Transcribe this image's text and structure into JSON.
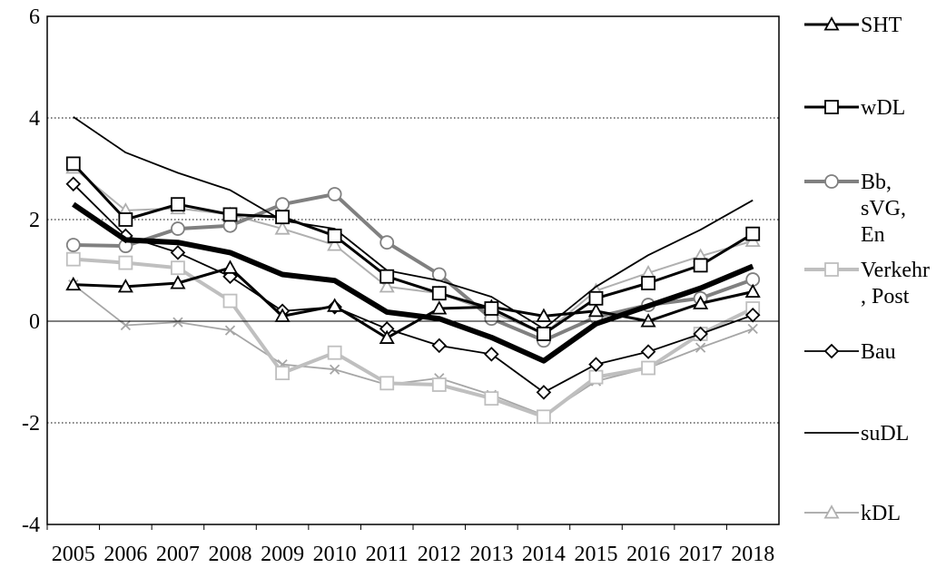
{
  "chart_data": {
    "type": "line",
    "title": "",
    "xlabel": "",
    "ylabel": "",
    "ylim": [
      -4,
      6
    ],
    "y_ticks": [
      "-4",
      "-2",
      "0",
      "2",
      "4",
      "6"
    ],
    "categories": [
      "2005",
      "2006",
      "2007",
      "2008",
      "2009",
      "2010",
      "2011",
      "2012",
      "2013",
      "2014",
      "2015",
      "2016",
      "2017",
      "2018"
    ],
    "grid": "horizontal dotted at -2, 2, 4",
    "legend_position": "right",
    "series": [
      {
        "name": "SHT",
        "color": "#000000",
        "marker": "triangle",
        "values": [
          0.72,
          0.68,
          0.75,
          1.05,
          0.1,
          0.3,
          -0.33,
          0.25,
          0.28,
          0.1,
          0.2,
          0.0,
          0.35,
          0.58
        ]
      },
      {
        "name": "wDL",
        "color": "#000000",
        "marker": "square",
        "values": [
          3.1,
          2.0,
          2.3,
          2.1,
          2.05,
          1.68,
          0.88,
          0.55,
          0.25,
          -0.25,
          0.45,
          0.75,
          1.1,
          1.72
        ]
      },
      {
        "name": "Bb, sVG, En",
        "color": "#808080",
        "marker": "circle",
        "values": [
          1.5,
          1.48,
          1.82,
          1.88,
          2.3,
          2.5,
          1.55,
          0.92,
          0.05,
          -0.38,
          0.08,
          0.32,
          0.45,
          0.82
        ]
      },
      {
        "name": "Verkehr, Post",
        "color": "#bfbfbf",
        "marker": "square",
        "values": [
          1.22,
          1.15,
          1.05,
          0.4,
          -1.02,
          -0.62,
          -1.22,
          -1.25,
          -1.52,
          -1.88,
          -1.1,
          -0.92,
          -0.25,
          0.25
        ]
      },
      {
        "name": "Bau",
        "color": "#000000",
        "marker": "diamond",
        "values": [
          2.7,
          1.68,
          1.35,
          0.88,
          0.2,
          0.28,
          -0.15,
          -0.48,
          -0.65,
          -1.4,
          -0.85,
          -0.6,
          -0.25,
          0.12
        ]
      },
      {
        "name": "suDL",
        "color": "#000000",
        "marker": "none",
        "values": [
          4.02,
          3.32,
          2.92,
          2.58,
          1.98,
          1.82,
          1.0,
          0.8,
          0.48,
          -0.15,
          0.68,
          1.3,
          1.8,
          2.38
        ]
      },
      {
        "name": "kDL",
        "color": "#b0b0b0",
        "marker": "triangle",
        "values": [
          3.02,
          2.18,
          2.22,
          2.1,
          1.82,
          1.5,
          0.68,
          0.55,
          0.18,
          -0.25,
          0.6,
          0.95,
          1.28,
          1.58
        ]
      },
      {
        "name": "",
        "color": "#000000",
        "marker": "none",
        "thick": true,
        "values": [
          2.3,
          1.6,
          1.55,
          1.35,
          0.92,
          0.8,
          0.18,
          0.05,
          -0.32,
          -0.78,
          -0.05,
          0.3,
          0.65,
          1.08
        ]
      },
      {
        "name": "",
        "color": "#a6a6a6",
        "marker": "x",
        "values": [
          0.72,
          -0.08,
          -0.02,
          -0.18,
          -0.85,
          -0.95,
          -1.25,
          -1.12,
          -1.45,
          -1.85,
          -1.18,
          -0.92,
          -0.52,
          -0.15
        ]
      }
    ],
    "legend": [
      {
        "label": "SHT",
        "series_index": 0
      },
      {
        "label": "wDL",
        "series_index": 1
      },
      {
        "label": "Bb,\nsVG,\nEn",
        "series_index": 2
      },
      {
        "label": "Verkehr\n, Post",
        "series_index": 3
      },
      {
        "label": "Bau",
        "series_index": 4
      },
      {
        "label": "suDL",
        "series_index": 5
      },
      {
        "label": "kDL",
        "series_index": 6
      }
    ]
  }
}
